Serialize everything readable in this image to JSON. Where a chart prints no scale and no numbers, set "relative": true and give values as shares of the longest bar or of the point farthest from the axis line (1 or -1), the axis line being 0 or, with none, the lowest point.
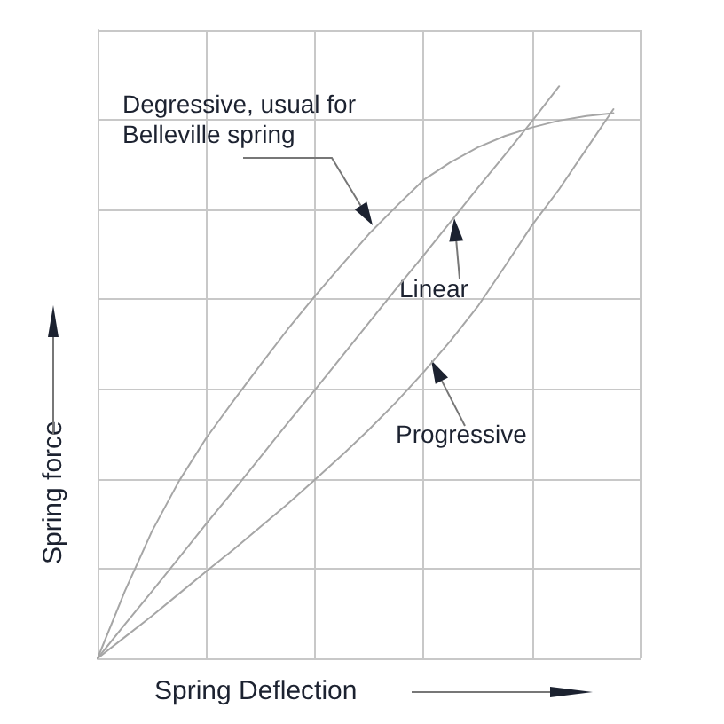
{
  "chart_data": {
    "type": "line",
    "relative": true,
    "xlabel": "Spring Deflection",
    "ylabel": "Spring force",
    "categories": [
      null,
      null,
      null,
      null,
      null,
      null,
      null,
      null,
      null,
      null,
      null,
      null,
      null,
      null,
      null,
      null,
      null,
      null,
      null,
      null,
      null
    ],
    "grid": true,
    "marker": "none",
    "line_style": "solid",
    "series": [
      {
        "color": "#a6a6a6",
        "values": [
          0,
          0.117,
          0.222,
          0.31,
          0.385,
          0.45,
          0.513,
          0.575,
          0.633,
          0.688,
          0.742,
          0.79,
          0.836,
          0.867,
          0.893,
          0.913,
          0.928,
          0.94,
          0.948,
          0.953,
          null
        ]
      },
      {
        "color": "#a6a6a6",
        "values": [
          0,
          0.059,
          0.117,
          0.176,
          0.235,
          0.293,
          0.352,
          0.411,
          0.469,
          0.528,
          0.587,
          0.646,
          0.704,
          0.763,
          0.822,
          0.88,
          0.939,
          1,
          null,
          null,
          null
        ]
      },
      {
        "color": "#a6a6a6",
        "values": [
          0,
          0.037,
          0.074,
          0.113,
          0.152,
          0.19,
          0.23,
          0.27,
          0.312,
          0.355,
          0.4,
          0.448,
          0.5,
          0.555,
          0.615,
          0.685,
          0.757,
          0.82,
          0.89,
          0.96,
          null
        ]
      }
    ],
    "annotations": [
      "Degressive, usual for\nBelleville spring",
      "Linear",
      "Progressive"
    ]
  }
}
